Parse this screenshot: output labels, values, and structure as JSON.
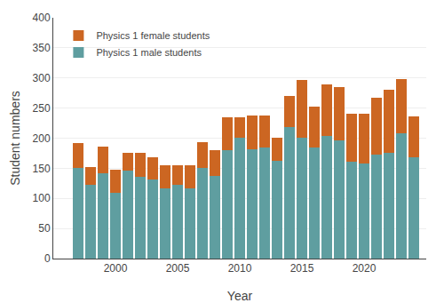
{
  "chart_data": {
    "type": "bar",
    "stacked": true,
    "x": [
      1997,
      1998,
      1999,
      2000,
      2001,
      2002,
      2003,
      2004,
      2005,
      2006,
      2007,
      2008,
      2009,
      2010,
      2011,
      2012,
      2013,
      2014,
      2015,
      2016,
      2017,
      2018,
      2019,
      2020,
      2021,
      2022,
      2023,
      2024
    ],
    "series": [
      {
        "name": "Physics 1 male students",
        "color": "#5f9ea0",
        "values": [
          151,
          122,
          141,
          109,
          146,
          136,
          132,
          117,
          122,
          117,
          150,
          138,
          180,
          201,
          182,
          184,
          163,
          219,
          201,
          185,
          203,
          197,
          161,
          158,
          172,
          175,
          208,
          168
        ]
      },
      {
        "name": "Physics 1 female students",
        "color": "#cc6622",
        "values": [
          41,
          30,
          45,
          38,
          30,
          40,
          37,
          38,
          33,
          38,
          43,
          42,
          55,
          33,
          55,
          53,
          38,
          51,
          95,
          67,
          87,
          88,
          79,
          82,
          95,
          105,
          90,
          68
        ]
      }
    ],
    "xlabel": "Year",
    "ylabel": "Student numbers",
    "xlim": [
      1995,
      2025
    ],
    "xticks": [
      2000,
      2005,
      2010,
      2015,
      2020
    ],
    "ylim": [
      0,
      400
    ],
    "yticks": [
      0,
      50,
      100,
      150,
      200,
      250,
      300,
      350,
      400
    ],
    "grid": true,
    "legend": "upper left"
  }
}
